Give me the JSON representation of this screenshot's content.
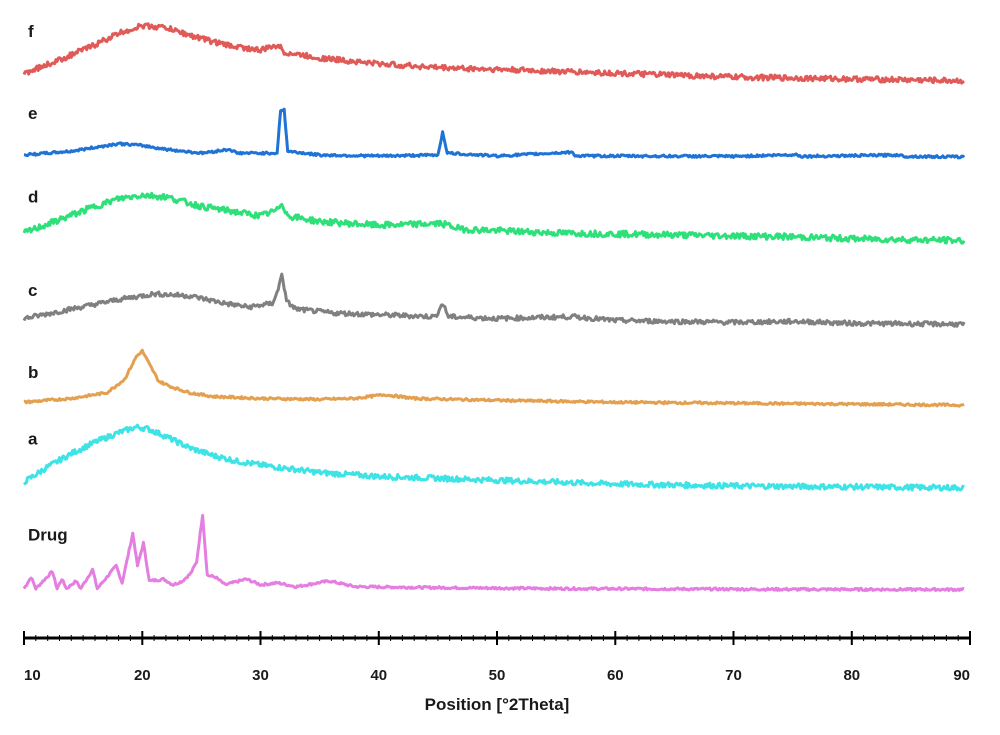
{
  "chart_data": {
    "type": "line",
    "title": "",
    "xlabel": "Position [°2Theta]",
    "ylabel": "",
    "xlim": [
      10,
      90
    ],
    "x_ticks": [
      10,
      20,
      30,
      40,
      50,
      60,
      70,
      80,
      90
    ],
    "x_tick_labels": [
      "10",
      "20",
      "30",
      "40",
      "50",
      "60",
      "70",
      "80",
      "90"
    ],
    "grid": false,
    "legend": "labels placed at left of each trace",
    "y_units": "relative intensity, traces vertically offset",
    "series": [
      {
        "name": "Drug",
        "color": "#e47ee0",
        "baseline": 0.05,
        "points": [
          [
            10,
            0.06
          ],
          [
            10.6,
            0.12
          ],
          [
            11,
            0.06
          ],
          [
            12.4,
            0.15
          ],
          [
            12.8,
            0.06
          ],
          [
            13.2,
            0.11
          ],
          [
            13.6,
            0.06
          ],
          [
            14.4,
            0.1
          ],
          [
            14.8,
            0.06
          ],
          [
            15.8,
            0.16
          ],
          [
            16.2,
            0.06
          ],
          [
            17.8,
            0.18
          ],
          [
            18.3,
            0.09
          ],
          [
            19.2,
            0.35
          ],
          [
            19.6,
            0.18
          ],
          [
            20.1,
            0.3
          ],
          [
            20.6,
            0.1
          ],
          [
            21.8,
            0.11
          ],
          [
            22.6,
            0.08
          ],
          [
            23.4,
            0.1
          ],
          [
            24.1,
            0.14
          ],
          [
            24.6,
            0.2
          ],
          [
            25.1,
            0.45
          ],
          [
            25.5,
            0.13
          ],
          [
            26.2,
            0.12
          ],
          [
            27,
            0.08
          ],
          [
            28.8,
            0.11
          ],
          [
            30,
            0.08
          ],
          [
            31.5,
            0.09
          ],
          [
            33,
            0.07
          ],
          [
            35.8,
            0.1
          ],
          [
            38,
            0.07
          ],
          [
            45,
            0.065
          ],
          [
            55,
            0.06
          ],
          [
            65,
            0.058
          ],
          [
            75,
            0.056
          ],
          [
            89.5,
            0.055
          ]
        ]
      },
      {
        "name": "a",
        "color": "#3ee3e6",
        "baseline": 0.58,
        "points": [
          [
            10,
            0.62
          ],
          [
            12,
            0.7
          ],
          [
            14,
            0.77
          ],
          [
            16,
            0.83
          ],
          [
            18,
            0.88
          ],
          [
            19.5,
            0.91
          ],
          [
            20.5,
            0.9
          ],
          [
            22,
            0.86
          ],
          [
            24,
            0.8
          ],
          [
            26,
            0.76
          ],
          [
            28,
            0.73
          ],
          [
            30,
            0.71
          ],
          [
            35,
            0.67
          ],
          [
            40,
            0.65
          ],
          [
            50,
            0.63
          ],
          [
            60,
            0.61
          ],
          [
            70,
            0.6
          ],
          [
            80,
            0.595
          ],
          [
            89.5,
            0.59
          ]
        ]
      },
      {
        "name": "b",
        "color": "#e3a050",
        "baseline": 1.02,
        "points": [
          [
            10,
            1.04
          ],
          [
            14,
            1.06
          ],
          [
            17,
            1.09
          ],
          [
            18.5,
            1.16
          ],
          [
            19.5,
            1.28
          ],
          [
            20,
            1.31
          ],
          [
            20.6,
            1.24
          ],
          [
            21.4,
            1.15
          ],
          [
            22.5,
            1.12
          ],
          [
            24,
            1.09
          ],
          [
            26,
            1.07
          ],
          [
            30,
            1.06
          ],
          [
            35,
            1.055
          ],
          [
            38,
            1.06
          ],
          [
            40.5,
            1.08
          ],
          [
            43,
            1.06
          ],
          [
            50,
            1.05
          ],
          [
            60,
            1.04
          ],
          [
            70,
            1.035
          ],
          [
            80,
            1.03
          ],
          [
            89.5,
            1.025
          ]
        ]
      },
      {
        "name": "c",
        "color": "#808080",
        "baseline": 1.44,
        "points": [
          [
            10,
            1.48
          ],
          [
            14,
            1.53
          ],
          [
            18,
            1.58
          ],
          [
            21,
            1.61
          ],
          [
            24,
            1.6
          ],
          [
            27,
            1.56
          ],
          [
            29,
            1.54
          ],
          [
            31,
            1.56
          ],
          [
            31.5,
            1.63
          ],
          [
            31.8,
            1.72
          ],
          [
            32.2,
            1.57
          ],
          [
            33,
            1.53
          ],
          [
            36,
            1.51
          ],
          [
            40,
            1.5
          ],
          [
            44.8,
            1.49
          ],
          [
            45.4,
            1.56
          ],
          [
            45.9,
            1.49
          ],
          [
            50,
            1.48
          ],
          [
            56.4,
            1.49
          ],
          [
            60,
            1.47
          ],
          [
            70,
            1.46
          ],
          [
            75.3,
            1.465
          ],
          [
            80,
            1.455
          ],
          [
            89.5,
            1.45
          ]
        ]
      },
      {
        "name": "d",
        "color": "#2ee07a",
        "baseline": 1.88,
        "points": [
          [
            10,
            1.93
          ],
          [
            13,
            2.0
          ],
          [
            16,
            2.07
          ],
          [
            18,
            2.11
          ],
          [
            20,
            2.13
          ],
          [
            22,
            2.12
          ],
          [
            25,
            2.07
          ],
          [
            28,
            2.04
          ],
          [
            30,
            2.02
          ],
          [
            31.4,
            2.05
          ],
          [
            31.8,
            2.09
          ],
          [
            32.3,
            2.02
          ],
          [
            35,
            1.99
          ],
          [
            40,
            1.97
          ],
          [
            45.3,
            1.98
          ],
          [
            47,
            1.95
          ],
          [
            55,
            1.93
          ],
          [
            65,
            1.92
          ],
          [
            75,
            1.91
          ],
          [
            80,
            1.9
          ],
          [
            89.5,
            1.89
          ]
        ]
      },
      {
        "name": "e",
        "color": "#1f73d6",
        "baseline": 2.33,
        "points": [
          [
            10,
            2.34
          ],
          [
            14,
            2.36
          ],
          [
            16,
            2.38
          ],
          [
            18,
            2.4
          ],
          [
            20,
            2.39
          ],
          [
            22,
            2.37
          ],
          [
            25,
            2.35
          ],
          [
            27.4,
            2.37
          ],
          [
            28,
            2.35
          ],
          [
            31.4,
            2.35
          ],
          [
            31.7,
            2.57
          ],
          [
            32,
            2.58
          ],
          [
            32.3,
            2.36
          ],
          [
            35,
            2.34
          ],
          [
            40,
            2.335
          ],
          [
            45,
            2.34
          ],
          [
            45.4,
            2.46
          ],
          [
            45.8,
            2.35
          ],
          [
            50,
            2.335
          ],
          [
            56.3,
            2.355
          ],
          [
            56.7,
            2.335
          ],
          [
            60,
            2.335
          ],
          [
            70,
            2.333
          ],
          [
            75.3,
            2.342
          ],
          [
            75.8,
            2.333
          ],
          [
            84,
            2.34
          ],
          [
            84.4,
            2.333
          ],
          [
            89.5,
            2.33
          ]
        ]
      },
      {
        "name": "f",
        "color": "#e05a58",
        "baseline": 2.72,
        "points": [
          [
            10,
            2.77
          ],
          [
            13,
            2.84
          ],
          [
            16,
            2.92
          ],
          [
            18,
            2.98
          ],
          [
            20,
            3.02
          ],
          [
            22,
            3.01
          ],
          [
            24,
            2.97
          ],
          [
            27,
            2.92
          ],
          [
            30,
            2.89
          ],
          [
            31.5,
            2.92
          ],
          [
            32,
            2.88
          ],
          [
            35,
            2.85
          ],
          [
            40,
            2.82
          ],
          [
            45,
            2.8
          ],
          [
            50,
            2.79
          ],
          [
            60,
            2.77
          ],
          [
            70,
            2.75
          ],
          [
            80,
            2.74
          ],
          [
            89.5,
            2.73
          ]
        ]
      }
    ]
  }
}
